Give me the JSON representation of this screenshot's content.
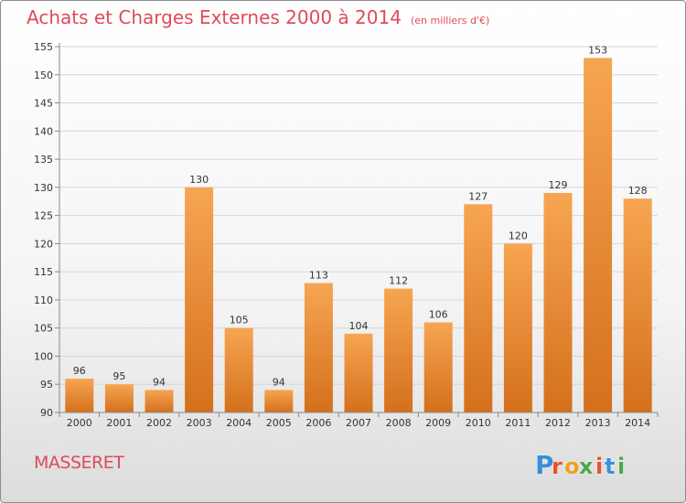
{
  "header": {
    "title": "Achats et Charges Externes 2000 à 2014",
    "subtitle": "(en milliers d'€)"
  },
  "footer": {
    "commune": "MASSERET",
    "logo_text": "Proxiti",
    "logo_letters": [
      "P",
      "r",
      "o",
      "x",
      "i",
      "t",
      "i"
    ],
    "logo_colors": [
      "#3a8fd8",
      "#e8542a",
      "#f0a020",
      "#4aa84a",
      "#e8542a",
      "#3a8fd8",
      "#4aa84a"
    ]
  },
  "chart_data": {
    "type": "bar",
    "title": "Achats et Charges Externes 2000 à 2014",
    "subtitle": "(en milliers d'€)",
    "categories": [
      "2000",
      "2001",
      "2002",
      "2003",
      "2004",
      "2005",
      "2006",
      "2007",
      "2008",
      "2009",
      "2010",
      "2011",
      "2012",
      "2013",
      "2014"
    ],
    "values": [
      96,
      95,
      94,
      130,
      105,
      94,
      113,
      104,
      112,
      106,
      127,
      120,
      129,
      153,
      128
    ],
    "value_labels": [
      "96",
      "95",
      "94",
      "130",
      "105",
      "94",
      "113",
      "104",
      "112",
      "106",
      "127",
      "120",
      "129",
      "153",
      "128"
    ],
    "ylim": [
      90,
      155
    ],
    "yticks": [
      90,
      95,
      100,
      105,
      110,
      115,
      120,
      125,
      130,
      135,
      140,
      145,
      150,
      155
    ],
    "xlabel": "",
    "ylabel": "",
    "grid": true,
    "bar_color_top": "#f7a552",
    "bar_color_bottom": "#d4701c"
  }
}
